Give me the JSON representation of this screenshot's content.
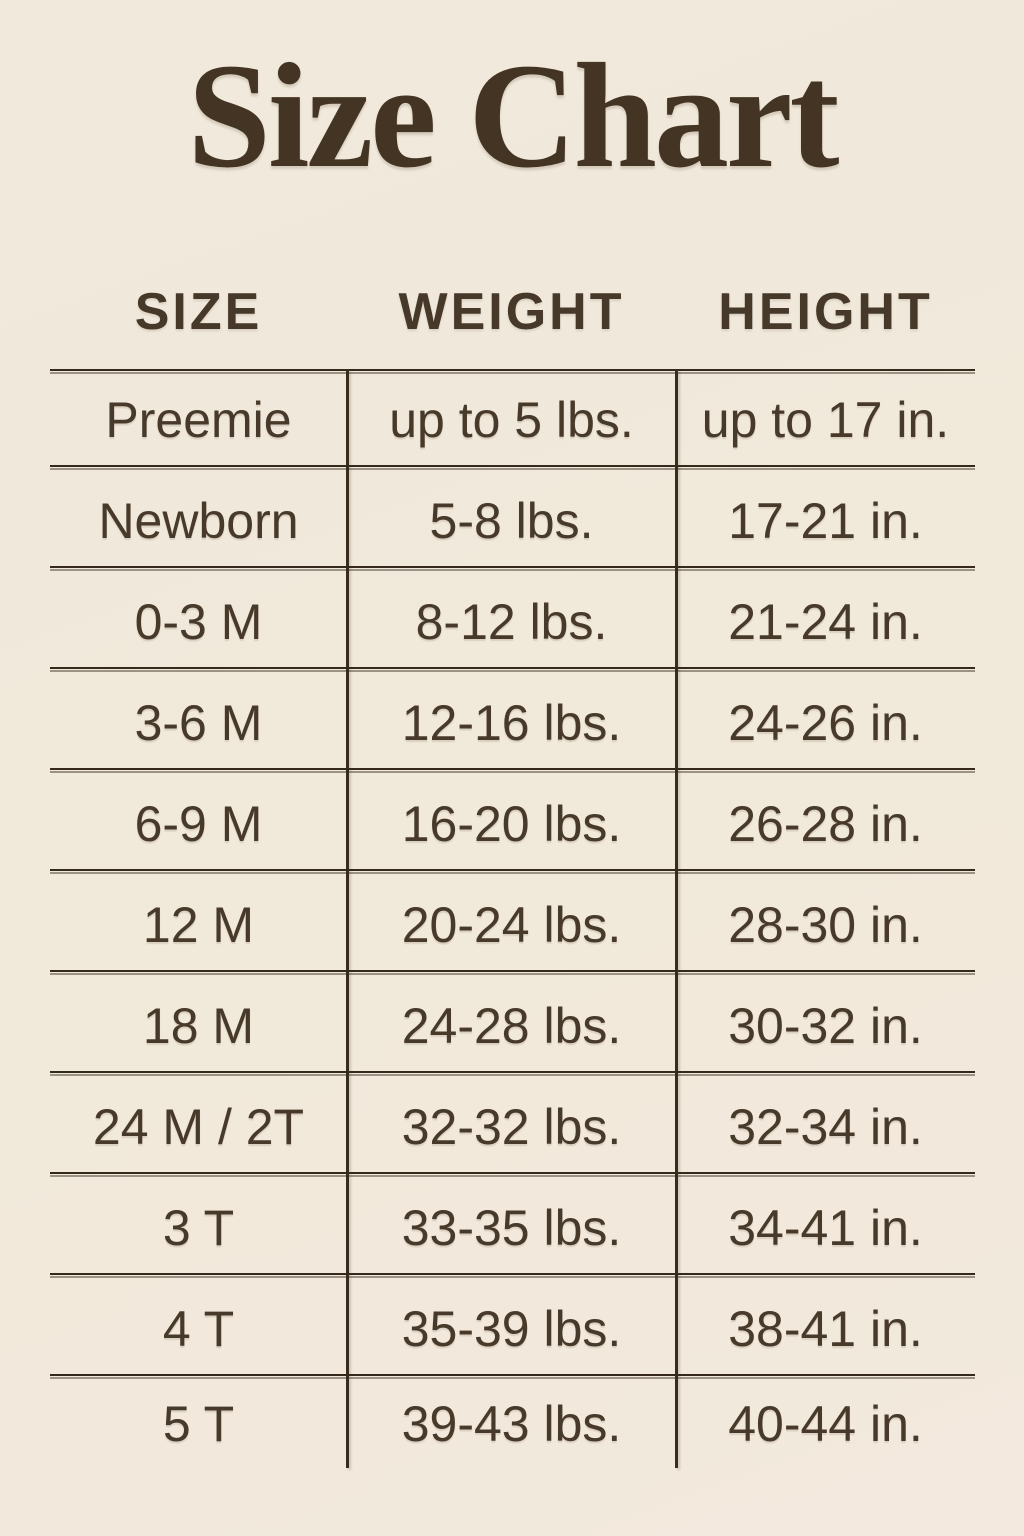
{
  "page": {
    "title": "Size Chart",
    "background_color": "#f1e9db",
    "ink_color": "#443423",
    "line_color": "#35291c"
  },
  "table": {
    "headers": [
      "SIZE",
      "WEIGHT",
      "HEIGHT"
    ],
    "rows": [
      {
        "size": "Preemie",
        "weight": "up to 5 lbs.",
        "height": "up to 17 in."
      },
      {
        "size": "Newborn",
        "weight": "5-8 lbs.",
        "height": "17-21 in."
      },
      {
        "size": "0-3 M",
        "weight": "8-12 lbs.",
        "height": "21-24 in."
      },
      {
        "size": "3-6 M",
        "weight": "12-16 lbs.",
        "height": "24-26 in."
      },
      {
        "size": "6-9 M",
        "weight": "16-20 lbs.",
        "height": "26-28 in."
      },
      {
        "size": "12 M",
        "weight": "20-24 lbs.",
        "height": "28-30 in."
      },
      {
        "size": "18 M",
        "weight": "24-28 lbs.",
        "height": "30-32 in."
      },
      {
        "size": "24 M / 2T",
        "weight": "32-32 lbs.",
        "height": "32-34 in."
      },
      {
        "size": "3 T",
        "weight": "33-35 lbs.",
        "height": "34-41 in."
      },
      {
        "size": "4 T",
        "weight": "35-39 lbs.",
        "height": "38-41 in."
      },
      {
        "size": "5 T",
        "weight": "39-43 lbs.",
        "height": "40-44 in."
      }
    ]
  }
}
